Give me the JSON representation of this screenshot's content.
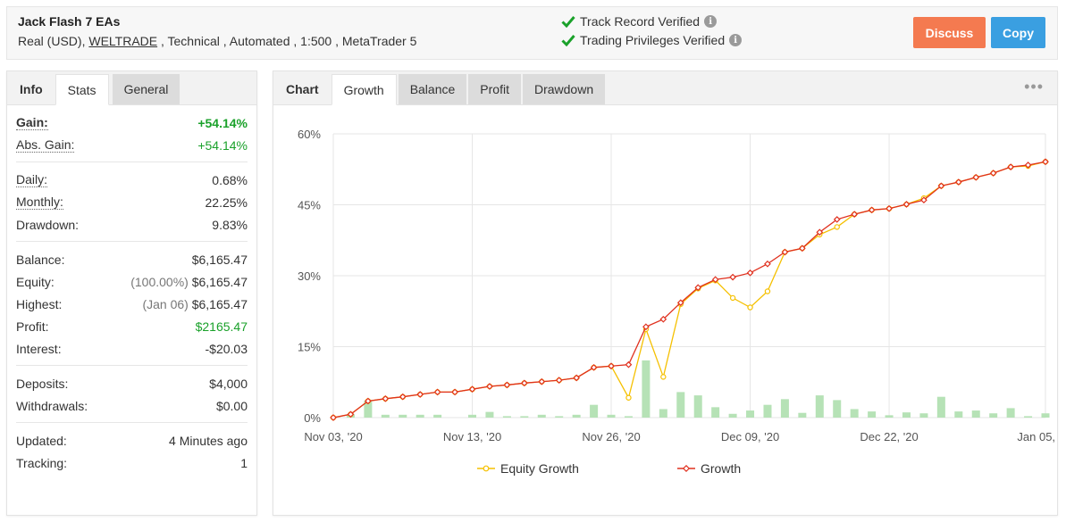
{
  "account": {
    "name": "Jack Flash 7 EAs",
    "meta_prefix": "Real (USD), ",
    "broker": "WELTRADE",
    "meta_suffix": " , Technical , Automated , 1:500 , MetaTrader 5"
  },
  "verification": {
    "track_record": "Track Record Verified",
    "trading_privileges": "Trading Privileges Verified",
    "check_color": "#1aa12a"
  },
  "actions": {
    "discuss": "Discuss",
    "copy": "Copy"
  },
  "left_tabs": {
    "info": "Info",
    "stats": "Stats",
    "general": "General"
  },
  "stats": {
    "gain_label": "Gain:",
    "gain_value": "+54.14%",
    "abs_gain_label": "Abs. Gain:",
    "abs_gain_value": "+54.14%",
    "daily_label": "Daily:",
    "daily_value": "0.68%",
    "monthly_label": "Monthly:",
    "monthly_value": "22.25%",
    "drawdown_label": "Drawdown:",
    "drawdown_value": "9.83%",
    "balance_label": "Balance:",
    "balance_value": "$6,165.47",
    "equity_label": "Equity:",
    "equity_pct": "(100.00%)",
    "equity_value": "$6,165.47",
    "highest_label": "Highest:",
    "highest_date": "(Jan 06)",
    "highest_value": "$6,165.47",
    "profit_label": "Profit:",
    "profit_value": "$2165.47",
    "interest_label": "Interest:",
    "interest_value": "-$20.03",
    "deposits_label": "Deposits:",
    "deposits_value": "$4,000",
    "withdrawals_label": "Withdrawals:",
    "withdrawals_value": "$0.00",
    "updated_label": "Updated:",
    "updated_value": "4 Minutes ago",
    "tracking_label": "Tracking:",
    "tracking_value": "1"
  },
  "right_tabs": {
    "chart": "Chart",
    "growth": "Growth",
    "balance": "Balance",
    "profit": "Profit",
    "drawdown": "Drawdown"
  },
  "chart_data": {
    "type": "line",
    "yticks": [
      "60%",
      "45%",
      "30%",
      "15%",
      "0%"
    ],
    "ytick_values": [
      60,
      45,
      30,
      15,
      0
    ],
    "ylim": [
      0,
      60
    ],
    "xticks": [
      "Nov 03, '20",
      "Nov 13, '20",
      "Nov 26, '20",
      "Dec 09, '20",
      "Dec 22, '20",
      "Jan 05, '21"
    ],
    "xtick_index": [
      0,
      8,
      16,
      24,
      32,
      41
    ],
    "legend_position": "bottom",
    "series": [
      {
        "name": "Equity Growth",
        "color": "#f5c000",
        "values": [
          0,
          0.7,
          3.5,
          4.0,
          4.4,
          4.9,
          5.4,
          5.4,
          6.0,
          6.6,
          6.9,
          7.3,
          7.6,
          7.9,
          8.4,
          10.6,
          10.9,
          4.2,
          18.7,
          8.6,
          24.0,
          27.3,
          29.0,
          25.3,
          23.3,
          26.7,
          35.0,
          35.8,
          38.7,
          40.3,
          43.0,
          43.9,
          44.2,
          45.1,
          46.4,
          49.0,
          49.8,
          50.8,
          51.7,
          53.0,
          53.2,
          54.1
        ]
      },
      {
        "name": "Growth",
        "color": "#e0301e",
        "values": [
          0,
          0.7,
          3.5,
          4.0,
          4.4,
          4.9,
          5.4,
          5.4,
          6.0,
          6.6,
          6.9,
          7.3,
          7.6,
          7.9,
          8.4,
          10.6,
          10.9,
          11.2,
          19.2,
          20.8,
          24.3,
          27.5,
          29.2,
          29.7,
          30.6,
          32.5,
          35.0,
          35.8,
          39.2,
          41.9,
          43.0,
          43.9,
          44.2,
          45.1,
          46.0,
          49.0,
          49.8,
          50.8,
          51.7,
          53.0,
          53.4,
          54.1
        ]
      }
    ],
    "bars": {
      "color": "#b6e2b6",
      "values": [
        0,
        0.7,
        3.6,
        0.6,
        0.6,
        0.6,
        0.6,
        0.0,
        0.6,
        1.2,
        0.3,
        0.3,
        0.6,
        0.3,
        0.6,
        2.7,
        0.6,
        0.3,
        12.1,
        1.8,
        5.4,
        4.7,
        2.2,
        0.8,
        1.5,
        2.7,
        3.9,
        1.0,
        4.7,
        3.7,
        1.8,
        1.3,
        0.5,
        1.1,
        0.9,
        4.4,
        1.3,
        1.5,
        0.9,
        2.0,
        0.3,
        0.9
      ]
    }
  }
}
